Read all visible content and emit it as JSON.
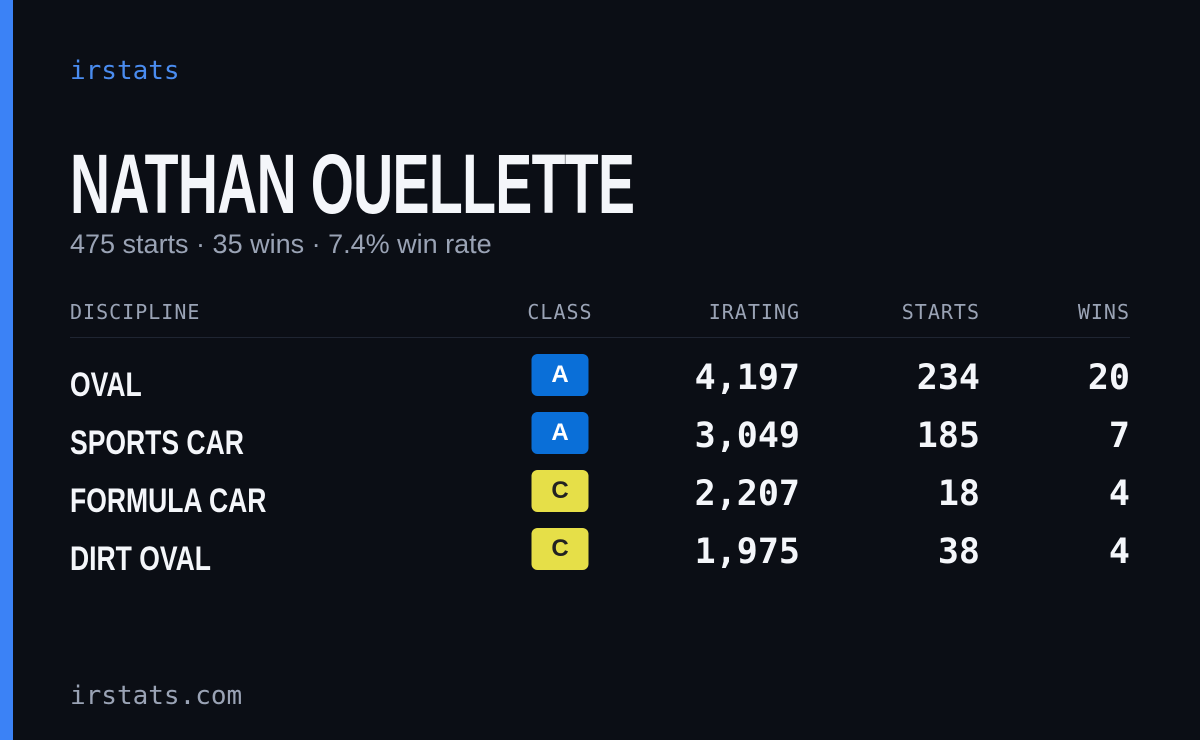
{
  "brand": "irstats",
  "name": "NATHAN OUELLETTE",
  "summary": "475 starts · 35 wins · 7.4% win rate",
  "table": {
    "headers": [
      "DISCIPLINE",
      "CLASS",
      "IRATING",
      "STARTS",
      "WINS"
    ],
    "rows": [
      [
        "OVAL",
        "A",
        "4,197",
        "234",
        "20"
      ],
      [
        "SPORTS CAR",
        "A",
        "3,049",
        "185",
        "7"
      ],
      [
        "FORMULA CAR",
        "C",
        "2,207",
        "18",
        "4"
      ],
      [
        "DIRT OVAL",
        "C",
        "1,975",
        "38",
        "4"
      ]
    ]
  },
  "footer": "irstats.com"
}
